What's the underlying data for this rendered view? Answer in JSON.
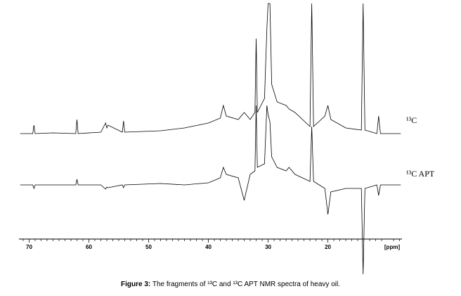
{
  "chart_data": {
    "type": "line",
    "caption_label": "Figure 3:",
    "caption": "The fragments of ¹³C and ¹³C APT NMR spectra of heavy oil.",
    "xlabel": "[ppm]",
    "xlim": [
      71.7,
      7.6
    ],
    "xticks": [
      70,
      60,
      50,
      40,
      30,
      20
    ],
    "minor_xticks": [
      71,
      69,
      68,
      67,
      66,
      65,
      64,
      63,
      62,
      61,
      59,
      58,
      57,
      56,
      55,
      54,
      53,
      52,
      51,
      49,
      48,
      47,
      46,
      45,
      44,
      43,
      42,
      41,
      39,
      38,
      37,
      36,
      35,
      34,
      33,
      32,
      31,
      29,
      28,
      27,
      26,
      25,
      24,
      23,
      22,
      21,
      19,
      18,
      17,
      16,
      15,
      14,
      13,
      12,
      11,
      9,
      8
    ],
    "x": [
      71.5,
      69.4,
      69.2,
      69.0,
      66,
      62.2,
      62.0,
      61.8,
      58,
      57.2,
      57.0,
      56.8,
      54.4,
      54.2,
      54.0,
      48,
      44,
      40,
      38.0,
      37.5,
      37.0,
      35,
      34.0,
      33.0,
      32.2,
      32.0,
      31.8,
      30.6,
      30.2,
      30.0,
      29.7,
      29.4,
      28.5,
      27.0,
      26.5,
      25.5,
      23.0,
      22.7,
      22.4,
      20.5,
      20.0,
      19.5,
      17,
      14.4,
      14.1,
      13.8,
      11.8,
      11.5,
      11.2,
      7.8
    ],
    "series": [
      {
        "name": "¹³C",
        "color": "#000000",
        "values": [
          0,
          0,
          12,
          0,
          1,
          0,
          20,
          0,
          2,
          15,
          8,
          12,
          2,
          18,
          2,
          4,
          8,
          15,
          22,
          40,
          25,
          20,
          30,
          20,
          30,
          135,
          30,
          50,
          150,
          185,
          185,
          70,
          45,
          40,
          35,
          30,
          10,
          185,
          10,
          25,
          40,
          20,
          8,
          5,
          185,
          5,
          0,
          25,
          0,
          0
        ]
      },
      {
        "name": "¹³C APT",
        "color": "#000000",
        "values": [
          0,
          0,
          -5,
          0,
          0,
          0,
          8,
          0,
          0,
          -6,
          -3,
          -4,
          0,
          -4,
          0,
          2,
          0,
          3,
          10,
          25,
          15,
          10,
          -22,
          15,
          20,
          113,
          25,
          30,
          113,
          100,
          90,
          40,
          25,
          20,
          25,
          15,
          5,
          83,
          5,
          -5,
          -42,
          -10,
          -5,
          -5,
          -127,
          -5,
          0,
          -15,
          0,
          0
        ]
      }
    ]
  }
}
